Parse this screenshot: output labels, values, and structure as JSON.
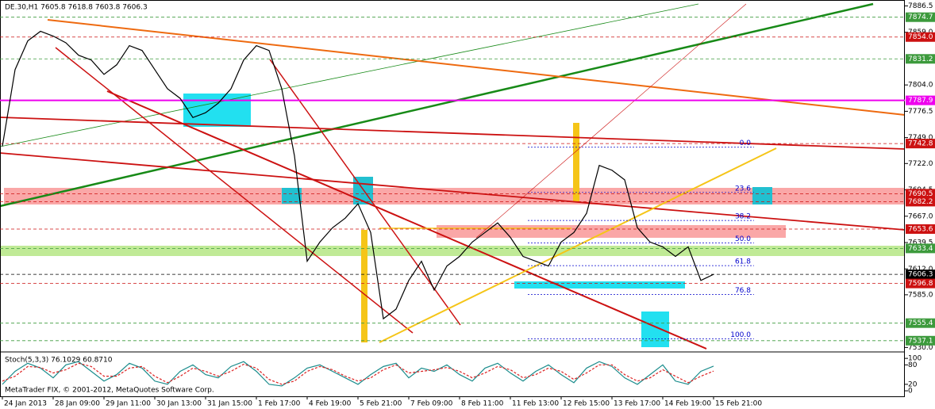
{
  "chart_data": [
    {
      "type": "line",
      "title": "DE.30,H1  7605.8 7618.8 7603.8 7606.3",
      "categories": [
        "24 Jan 2013",
        null,
        null,
        null,
        "28 Jan 09:00",
        null,
        null,
        null,
        "29 Jan 11:00",
        null,
        null,
        null,
        "30 Jan 13:00",
        null,
        null,
        null,
        "31 Jan 15:00",
        null,
        null,
        null,
        "1 Feb 17:00",
        null,
        null,
        null,
        "4 Feb 19:00",
        null,
        null,
        null,
        "5 Feb 21:00",
        null,
        null,
        null,
        "7 Feb 09:00",
        null,
        null,
        null,
        "8 Feb 11:00",
        null,
        null,
        null,
        "11 Feb 13:00",
        null,
        null,
        null,
        "12 Feb 15:00",
        null,
        null,
        null,
        "13 Feb 17:00",
        null,
        null,
        null,
        "14 Feb 19:00",
        null,
        null,
        null,
        "15 Feb 21:00"
      ],
      "values": [
        7740,
        7820,
        7850,
        7860,
        7855,
        7848,
        7835,
        7830,
        7815,
        7825,
        7845,
        7840,
        7820,
        7800,
        7790,
        7770,
        7775,
        7785,
        7800,
        7830,
        7845,
        7840,
        7800,
        7730,
        7620,
        7640,
        7655,
        7665,
        7680,
        7650,
        7560,
        7570,
        7600,
        7620,
        7590,
        7615,
        7625,
        7640,
        7650,
        7660,
        7645,
        7625,
        7620,
        7615,
        7640,
        7650,
        7670,
        7720,
        7715,
        7705,
        7655,
        7640,
        7635,
        7625,
        7635,
        7600,
        7606.3
      ],
      "color": "#000000",
      "ylim": [
        7527,
        7891
      ],
      "yticks": [
        7886.5,
        {
          "value": 7859,
          "label": "7859.0"
        },
        {
          "value": 7804,
          "label": "7804.0"
        },
        7776.5,
        {
          "value": 7749,
          "label": "7749.0"
        },
        {
          "value": 7722,
          "label": "7722.0"
        },
        7694.5,
        {
          "value": 7667,
          "label": "7667.0"
        },
        7639.5,
        {
          "value": 7612,
          "label": "7612.0"
        },
        {
          "value": 7585,
          "label": "7585.0"
        },
        {
          "value": 7530,
          "label": "7530.0"
        }
      ],
      "levels": [
        {
          "value": 7874.7,
          "color": "#3c9a3c"
        },
        {
          "value": 7854,
          "label": "7854.0",
          "color": "#cc1111"
        },
        {
          "value": 7831.2,
          "color": "#3c9a3c"
        },
        {
          "value": 7787.9,
          "color": "#ee00ee"
        },
        {
          "value": 7742.8,
          "color": "#cc1111"
        },
        {
          "value": 7690.5,
          "color": "#cc1111"
        },
        {
          "value": 7682.2,
          "color": "#cc1111"
        },
        {
          "value": 7653.6,
          "color": "#cc1111"
        },
        {
          "value": 7633.4,
          "color": "#3c9a3c"
        },
        {
          "value": 7606.3,
          "color": "#000000"
        },
        {
          "value": 7596.8,
          "color": "#cc1111"
        },
        {
          "value": 7555.4,
          "color": "#3c9a3c"
        },
        {
          "value": 7537.1,
          "color": "#3c9a3c"
        }
      ],
      "fibonacci": {
        "high": 7739,
        "low": 7539,
        "color": "#0000cc",
        "levels": [
          {
            "value": 0,
            "label": "0.0"
          },
          23.6,
          38.2,
          {
            "value": 50,
            "label": "50.0"
          },
          61.8,
          76.8,
          {
            "value": 100,
            "label": "100.0"
          }
        ]
      }
    },
    {
      "type": "line",
      "title": "Stoch(5,3,3) 76.1029 60.8710",
      "note": "MetaTrader FIX, © 2001-2012, MetaQuotes Software Corp.",
      "ylim": [
        -17,
        115
      ],
      "yticks": [
        0,
        20,
        80,
        100
      ],
      "series": [
        {
          "color": "#1a8c8c",
          "values": [
            20,
            60,
            85,
            70,
            40,
            80,
            90,
            60,
            30,
            50,
            85,
            70,
            30,
            20,
            60,
            80,
            50,
            40,
            75,
            90,
            60,
            20,
            15,
            40,
            70,
            80,
            60,
            40,
            20,
            50,
            75,
            85,
            40,
            70,
            60,
            80,
            50,
            30,
            70,
            85,
            55,
            30,
            60,
            80,
            50,
            25,
            70,
            90,
            75,
            40,
            20,
            50,
            80,
            30,
            20,
            60,
            76.1029
          ]
        },
        {
          "color": "#dd2222",
          "values": [
            30,
            45,
            75,
            72,
            55,
            65,
            85,
            75,
            45,
            45,
            70,
            75,
            45,
            25,
            45,
            70,
            60,
            45,
            60,
            82,
            70,
            35,
            20,
            30,
            60,
            75,
            65,
            45,
            30,
            40,
            65,
            80,
            55,
            60,
            65,
            72,
            60,
            40,
            55,
            75,
            65,
            40,
            50,
            70,
            60,
            35,
            55,
            80,
            80,
            50,
            30,
            40,
            65,
            45,
            25,
            45,
            60.871
          ]
        }
      ]
    }
  ]
}
